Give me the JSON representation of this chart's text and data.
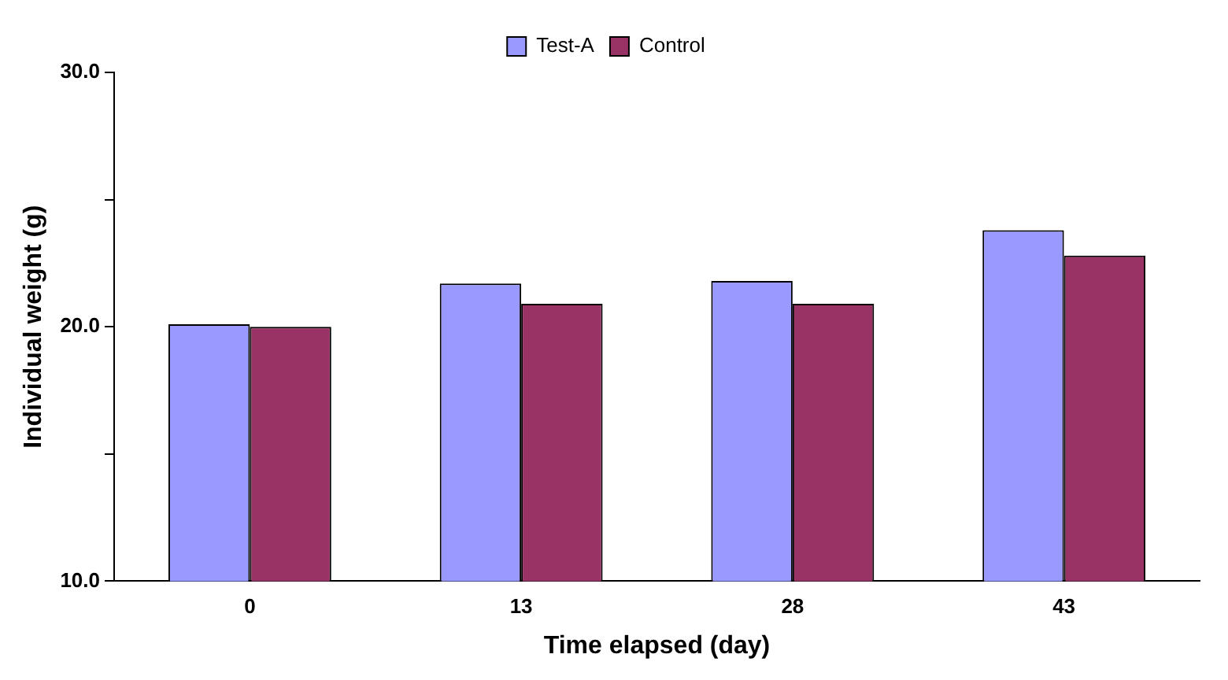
{
  "chart_data": {
    "type": "bar",
    "xlabel": "Time elapsed (day)",
    "ylabel": "Individual weight (g)",
    "categories": [
      "0",
      "13",
      "28",
      "43"
    ],
    "series": [
      {
        "name": "Test-A",
        "color": "#9999ff",
        "values": [
          20.1,
          21.7,
          21.8,
          23.8
        ]
      },
      {
        "name": "Control",
        "color": "#993366",
        "values": [
          20.0,
          20.9,
          20.9,
          22.8
        ]
      }
    ],
    "ylim": [
      10,
      30
    ],
    "yticks": [
      {
        "value": 10,
        "label": "10.0"
      },
      {
        "value": 15,
        "label": null
      },
      {
        "value": 20,
        "label": "20.0"
      },
      {
        "value": 25,
        "label": null
      },
      {
        "value": 30,
        "label": "30.0"
      }
    ],
    "grid": false,
    "legend": "top"
  }
}
